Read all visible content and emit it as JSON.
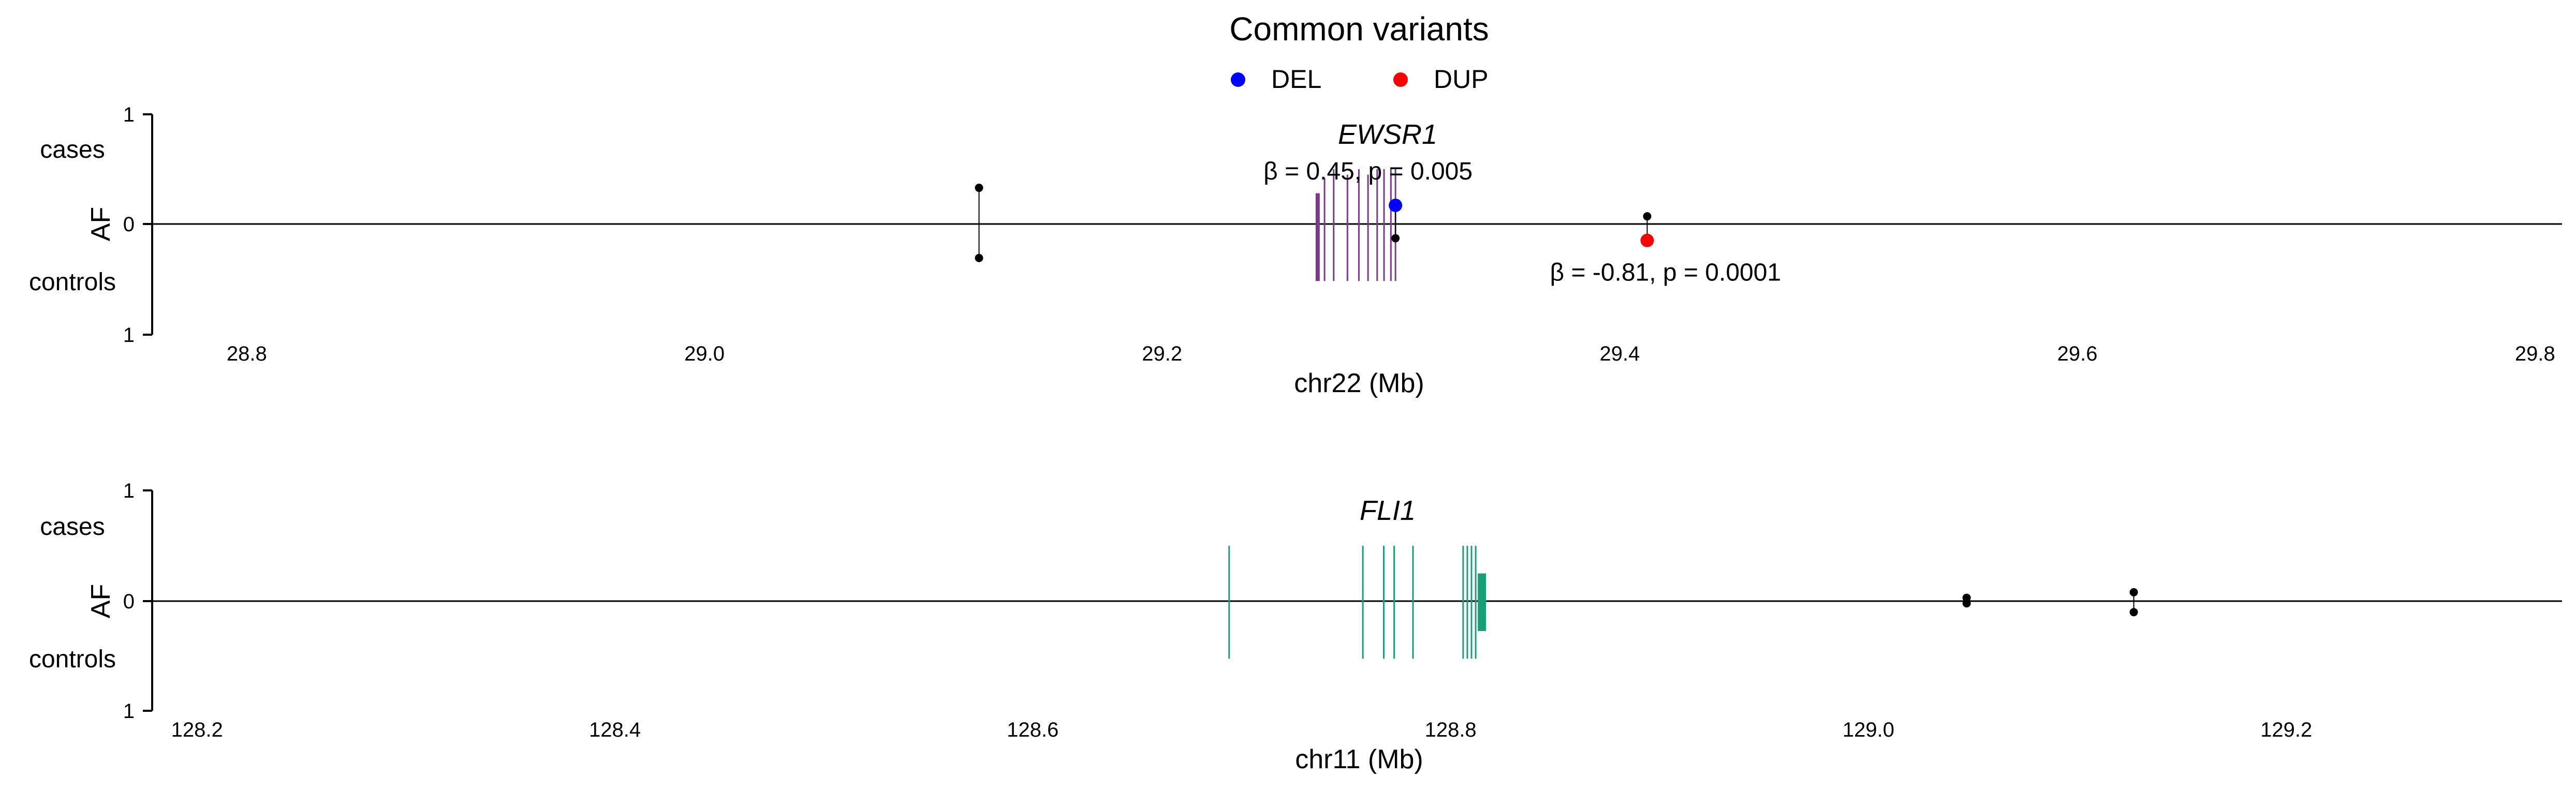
{
  "figure": {
    "title": "Common variants",
    "legend": [
      {
        "label": "DEL",
        "color": "#0000ff"
      },
      {
        "label": "DUP",
        "color": "#ff0000"
      }
    ]
  },
  "chart_data": [
    {
      "type": "scatter",
      "gene": "EWSR1",
      "chromosome": "chr22",
      "xlabel": "chr22 (Mb)",
      "ylabel": "AF",
      "side_labels": {
        "top": "cases",
        "bottom": "controls"
      },
      "y_ticks": [
        "1",
        "0",
        "1"
      ],
      "xlim": [
        28.76,
        29.81
      ],
      "x_ticks": [
        28.8,
        29.0,
        29.2,
        29.4,
        29.6,
        29.8
      ],
      "x_tick_labels": [
        "28.8",
        "29.0",
        "29.2",
        "29.4",
        "29.6",
        "29.8"
      ],
      "gene_color": "#7a3a8a",
      "exons": [
        {
          "x": 29.268,
          "up": 0.28,
          "down": 0.52
        },
        {
          "x": 29.271,
          "up": 0.42,
          "down": 0.52
        },
        {
          "x": 29.275,
          "up": 0.5,
          "down": 0.52
        },
        {
          "x": 29.281,
          "up": 0.45,
          "down": 0.52
        },
        {
          "x": 29.286,
          "up": 0.5,
          "down": 0.52
        },
        {
          "x": 29.29,
          "up": 0.45,
          "down": 0.52
        },
        {
          "x": 29.294,
          "up": 0.5,
          "down": 0.52
        },
        {
          "x": 29.297,
          "up": 0.5,
          "down": 0.52
        },
        {
          "x": 29.3,
          "up": 0.5,
          "down": 0.52
        },
        {
          "x": 29.302,
          "up": 0.5,
          "down": 0.52
        }
      ],
      "variants": [
        {
          "x": 29.12,
          "case_af": 0.33,
          "control_af": 0.31,
          "type": "other"
        },
        {
          "x": 29.302,
          "case_af": 0.17,
          "control_af": 0.13,
          "type": "DEL"
        },
        {
          "x": 29.412,
          "case_af": 0.07,
          "control_af": 0.15,
          "type": "DUP"
        }
      ],
      "annotations": [
        {
          "text": "β = 0.45, p = 0.005",
          "x": 29.29,
          "y": 0.48
        },
        {
          "text": "β = -0.81, p = 0.0001",
          "x": 29.42,
          "y": -0.44
        }
      ]
    },
    {
      "type": "scatter",
      "gene": "FLI1",
      "chromosome": "chr11",
      "xlabel": "chr11 (Mb)",
      "ylabel": "AF",
      "side_labels": {
        "top": "cases",
        "bottom": "controls"
      },
      "y_ticks": [
        "1",
        "0",
        "1"
      ],
      "xlim": [
        128.18,
        129.33
      ],
      "x_ticks": [
        128.2,
        128.4,
        128.6,
        128.8,
        129.0,
        129.2
      ],
      "x_tick_labels": [
        "128.2",
        "128.4",
        "128.6",
        "128.8",
        "129.0",
        "129.2"
      ],
      "gene_color": "#1a9e77",
      "exons": [
        {
          "x": 128.694,
          "up": 0.5,
          "down": 0.52
        },
        {
          "x": 128.758,
          "up": 0.5,
          "down": 0.52
        },
        {
          "x": 128.768,
          "up": 0.5,
          "down": 0.52
        },
        {
          "x": 128.773,
          "up": 0.5,
          "down": 0.52
        },
        {
          "x": 128.782,
          "up": 0.5,
          "down": 0.52
        },
        {
          "x": 128.806,
          "up": 0.5,
          "down": 0.52
        },
        {
          "x": 128.808,
          "up": 0.5,
          "down": 0.52
        },
        {
          "x": 128.81,
          "up": 0.5,
          "down": 0.52
        },
        {
          "x": 128.812,
          "up": 0.5,
          "down": 0.52
        },
        {
          "x": 128.814,
          "up": 0.25,
          "down": 0.27
        },
        {
          "x": 128.815,
          "up": 0.25,
          "down": 0.27
        },
        {
          "x": 128.816,
          "up": 0.25,
          "down": 0.27
        }
      ],
      "variants": [
        {
          "x": 129.047,
          "case_af": 0.03,
          "control_af": 0.02,
          "type": "other"
        },
        {
          "x": 129.127,
          "case_af": 0.08,
          "control_af": 0.1,
          "type": "other"
        }
      ],
      "annotations": []
    }
  ]
}
